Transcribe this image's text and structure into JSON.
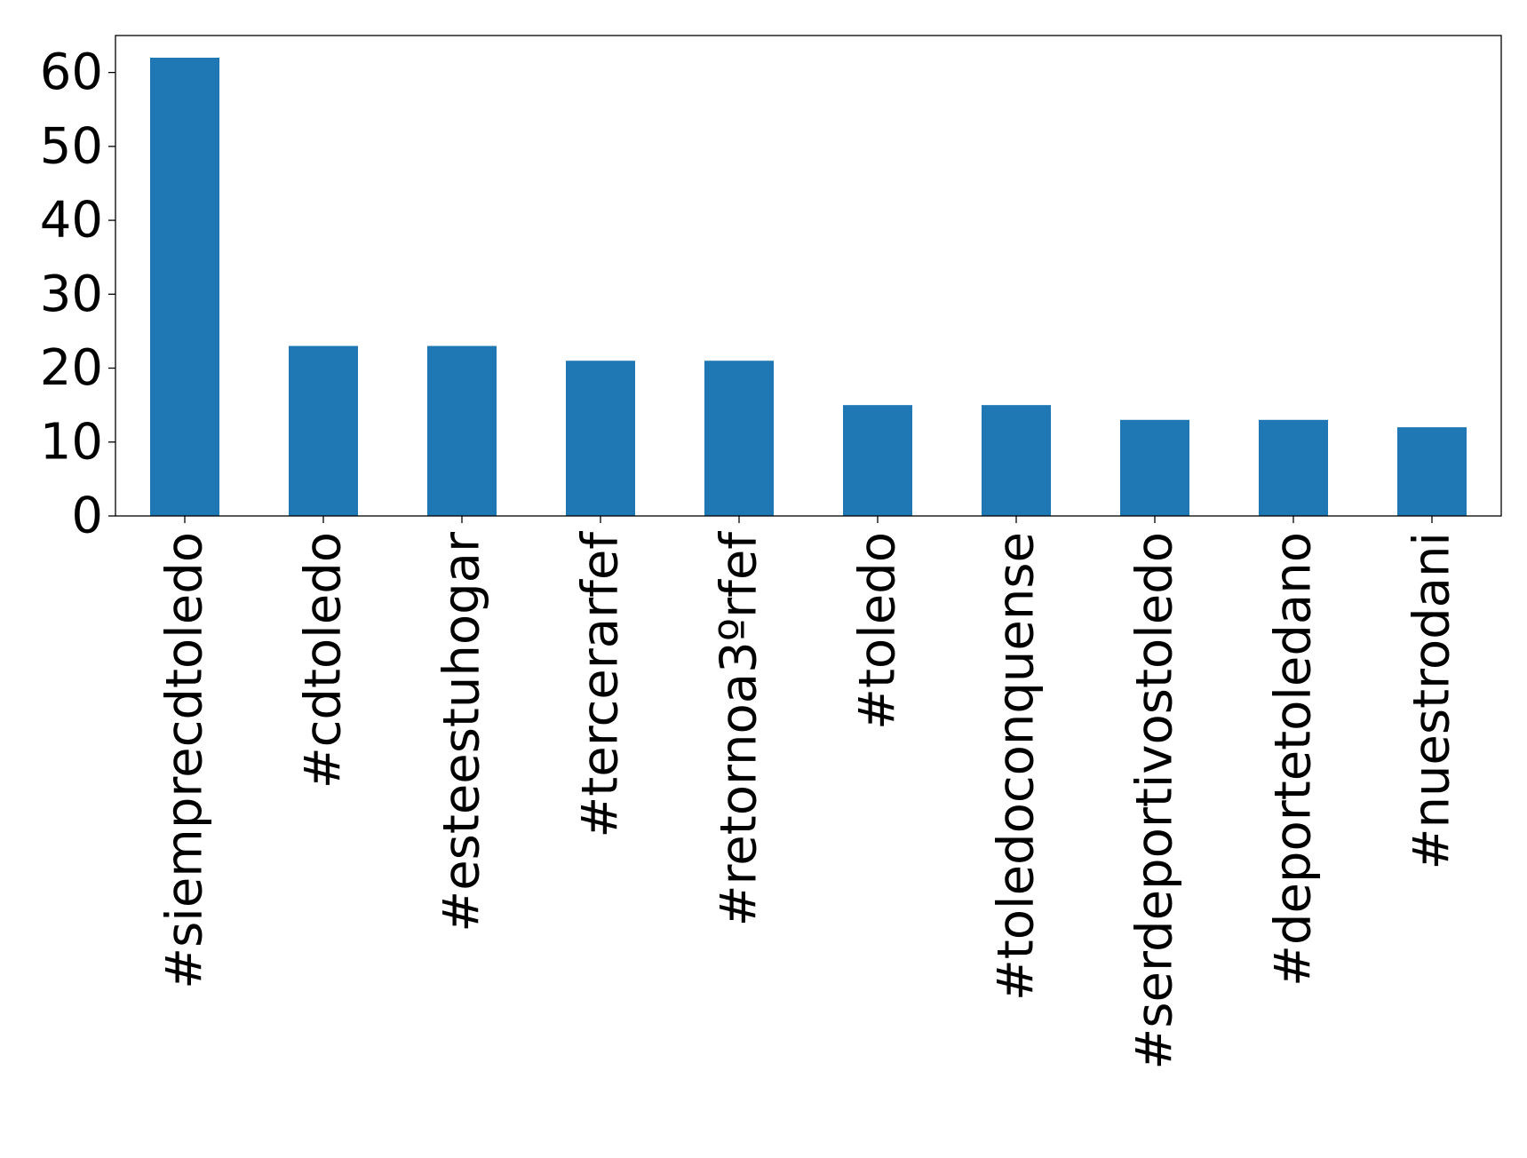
{
  "chart_data": {
    "type": "bar",
    "title": "",
    "xlabel": "",
    "ylabel": "",
    "categories": [
      "#siempre​cdtoledo",
      "#cdtoledo",
      "#esteestuhogar",
      "#tercerarfef",
      "#retornoa3ºrfef",
      "#toledo",
      "#toledoconquense",
      "#serdeportivostoledo",
      "#deportetoledano",
      "#nuestrodani"
    ],
    "values": [
      62,
      23,
      23,
      21,
      21,
      15,
      15,
      13,
      13,
      12
    ],
    "ylim": [
      0,
      65
    ],
    "yticks": [
      0,
      10,
      20,
      30,
      40,
      50,
      60
    ],
    "ytick_labels": [
      "0",
      "10",
      "20",
      "30",
      "40",
      "50",
      "60"
    ],
    "grid": false,
    "legend": false,
    "colors": {
      "bar": "#1f77b4",
      "axis": "#000000"
    }
  }
}
